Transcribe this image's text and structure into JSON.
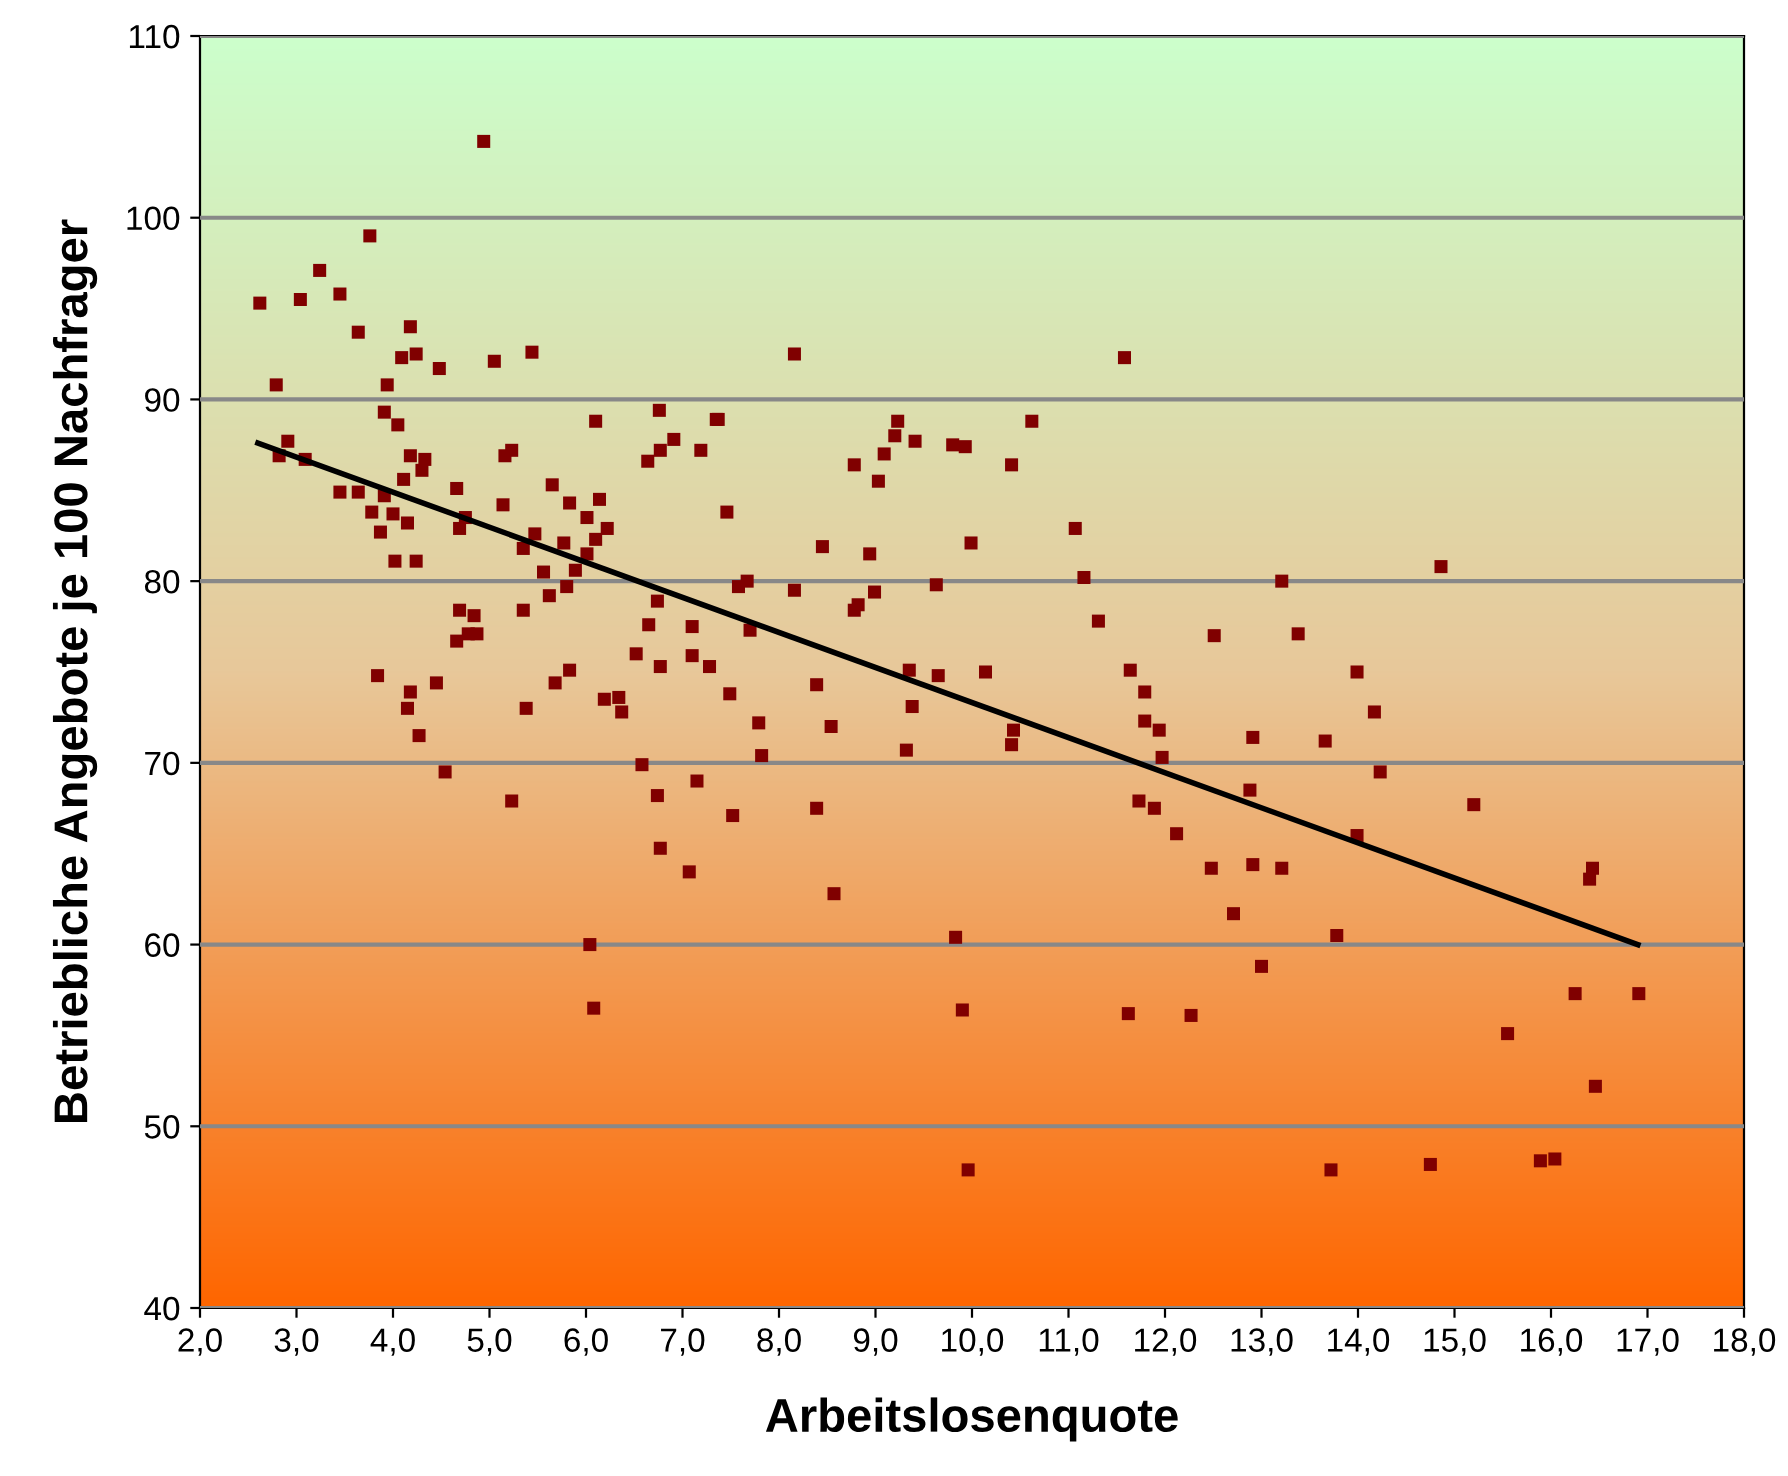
{
  "chart_data": {
    "type": "scatter",
    "xlabel": "Arbeitslosenquote",
    "ylabel": "Betriebliche Angebote je 100 Nachfrager",
    "xlim": [
      2,
      18
    ],
    "ylim": [
      40,
      110
    ],
    "xticks": [
      {
        "value": 2,
        "label": "2,0"
      },
      {
        "value": 3,
        "label": "3,0"
      },
      {
        "value": 4,
        "label": "4,0"
      },
      {
        "value": 5,
        "label": "5,0"
      },
      {
        "value": 6,
        "label": "6,0"
      },
      {
        "value": 7,
        "label": "7,0"
      },
      {
        "value": 8,
        "label": "8,0"
      },
      {
        "value": 9,
        "label": "9,0"
      },
      {
        "value": 10,
        "label": "10,0"
      },
      {
        "value": 11,
        "label": "11,0"
      },
      {
        "value": 12,
        "label": "12,0"
      },
      {
        "value": 13,
        "label": "13,0"
      },
      {
        "value": 14,
        "label": "14,0"
      },
      {
        "value": 15,
        "label": "15,0"
      },
      {
        "value": 16,
        "label": "16,0"
      },
      {
        "value": 17,
        "label": "17,0"
      },
      {
        "value": 18,
        "label": "18,0"
      }
    ],
    "yticks": [
      40,
      50,
      60,
      70,
      80,
      90,
      100,
      110
    ],
    "grid": "y",
    "legend": false,
    "series": [
      {
        "color": "#800000",
        "marker": "square",
        "x": [
          4.94,
          3.76,
          3.24,
          2.62,
          3.04,
          3.45,
          3.64,
          4.18,
          4.09,
          4.24,
          4.48,
          5.05,
          5.44,
          2.79,
          3.94,
          3.91,
          4.05,
          6.1,
          6.76,
          7.35,
          2.91,
          2.82,
          3.09,
          4.18,
          4.33,
          4.3,
          5.23,
          5.16,
          6.91,
          6.77,
          6.64,
          7.19,
          4.11,
          3.45,
          3.64,
          3.91,
          4.66,
          5.65,
          3.78,
          4.0,
          4.15,
          3.87,
          4.69,
          4.75,
          5.14,
          5.83,
          6.14,
          6.01,
          6.22,
          5.47,
          6.1,
          5.35,
          5.77,
          6.01,
          4.02,
          4.24,
          5.56,
          5.89,
          5.8,
          5.62,
          6.74,
          4.69,
          4.84,
          5.35,
          6.65,
          7.1,
          4.66,
          4.78,
          4.87,
          6.52,
          7.1,
          6.77,
          7.28,
          5.83,
          3.84,
          8.16,
          11.58,
          7.37,
          9.23,
          10.62,
          9.2,
          9.41,
          9.8,
          9.93,
          9.09,
          8.78,
          10.41,
          9.03,
          7.46,
          11.07,
          8.45,
          8.94,
          9.99,
          11.16,
          7.58,
          7.67,
          8.16,
          8.99,
          9.63,
          8.78,
          8.82,
          7.7,
          11.31,
          12.51,
          9.35,
          9.65,
          10.14,
          11.64,
          14.86,
          13.21,
          13.38,
          13.99,
          4.18,
          4.15,
          4.45,
          4.27,
          4.54,
          5.38,
          5.68,
          6.19,
          6.34,
          6.37,
          6.58,
          6.74,
          7.15,
          5.23,
          6.77,
          7.07,
          6.04,
          6.08,
          7.49,
          7.79,
          7.82,
          7.52,
          8.39,
          8.54,
          8.39,
          8.57,
          9.38,
          9.32,
          10.43,
          10.41,
          9.83,
          9.9,
          9.96,
          11.79,
          11.79,
          11.94,
          11.97,
          11.73,
          11.89,
          12.12,
          12.48,
          12.71,
          11.62,
          12.27,
          14.17,
          12.91,
          13.66,
          14.23,
          12.88,
          15.2,
          13.99,
          12.91,
          13.21,
          16.43,
          16.4,
          13.78,
          13.0,
          16.25,
          16.91,
          15.55,
          16.46,
          13.72,
          14.75,
          15.89,
          16.04
        ],
        "values": [
          104.2,
          99.0,
          97.1,
          95.3,
          95.5,
          95.8,
          93.7,
          94.0,
          92.3,
          92.5,
          91.7,
          92.1,
          92.6,
          90.8,
          90.8,
          89.3,
          88.6,
          88.8,
          89.4,
          88.9,
          87.7,
          86.9,
          86.7,
          86.9,
          86.7,
          86.1,
          87.2,
          86.9,
          87.8,
          87.2,
          86.6,
          87.2,
          85.6,
          84.9,
          84.9,
          84.7,
          85.1,
          85.3,
          83.8,
          83.7,
          83.2,
          82.7,
          82.9,
          83.5,
          84.2,
          84.3,
          84.5,
          83.5,
          82.9,
          82.6,
          82.3,
          81.8,
          82.1,
          81.5,
          81.1,
          81.1,
          80.5,
          80.6,
          79.7,
          79.2,
          78.9,
          78.4,
          78.1,
          78.4,
          77.6,
          77.5,
          76.7,
          77.1,
          77.1,
          76.0,
          75.9,
          75.3,
          75.3,
          75.1,
          74.8,
          92.5,
          92.3,
          88.9,
          88.8,
          88.8,
          88.0,
          87.7,
          87.5,
          87.4,
          87.0,
          86.4,
          86.4,
          85.5,
          83.8,
          82.9,
          81.9,
          81.5,
          82.1,
          80.2,
          79.7,
          80.0,
          79.5,
          79.4,
          79.8,
          78.4,
          78.7,
          77.3,
          77.8,
          77.0,
          75.1,
          74.8,
          75.0,
          75.1,
          80.8,
          80.0,
          77.1,
          75.0,
          73.9,
          73.0,
          74.4,
          71.5,
          69.5,
          73.0,
          74.4,
          73.5,
          73.6,
          72.8,
          69.9,
          68.2,
          69.0,
          67.9,
          65.3,
          64.0,
          60.0,
          56.5,
          73.8,
          72.2,
          70.4,
          67.1,
          74.3,
          72.0,
          67.5,
          62.8,
          73.1,
          70.7,
          71.8,
          71.0,
          60.4,
          56.4,
          47.6,
          73.9,
          72.3,
          71.8,
          70.3,
          67.9,
          67.5,
          66.1,
          64.2,
          61.7,
          56.2,
          56.1,
          72.8,
          71.4,
          71.2,
          69.5,
          68.5,
          67.7,
          66.0,
          64.4,
          64.2,
          64.2,
          63.6,
          60.5,
          58.8,
          57.3,
          57.3,
          55.1,
          52.2,
          47.6,
          47.9,
          48.1,
          48.2
        ]
      },
      {
        "type": "line",
        "color": "#000000",
        "marker": "none",
        "line_style": "solid",
        "x": [
          2.6,
          16.9
        ],
        "values": [
          87.6,
          60.0
        ]
      }
    ]
  }
}
